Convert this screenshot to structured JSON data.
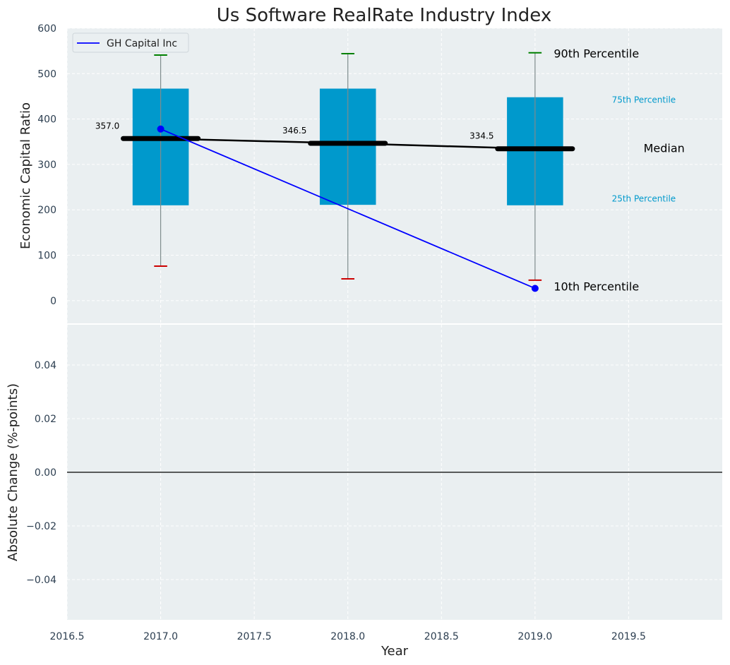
{
  "chart_data": [
    {
      "type": "box",
      "title": "Us Software RealRate Industry Index",
      "ylabel": "Economic Capital Ratio",
      "xlim": [
        2016.5,
        2020.0
      ],
      "ylim": [
        -50,
        600
      ],
      "xticks": [
        "2016.5",
        "2017.0",
        "2017.5",
        "2018.0",
        "2018.5",
        "2019.0",
        "2019.5"
      ],
      "xtick_values": [
        2016.5,
        2017.0,
        2017.5,
        2018.0,
        2018.5,
        2019.0,
        2019.5
      ],
      "yticks": [
        "0",
        "100",
        "200",
        "300",
        "400",
        "500",
        "600"
      ],
      "ytick_values": [
        0,
        100,
        200,
        300,
        400,
        500,
        600
      ],
      "grid": true,
      "legend": {
        "position": "top-left",
        "entries": [
          "GH Capital Inc"
        ]
      },
      "percentiles": [
        {
          "year": 2017,
          "p10": 76,
          "p25": 210,
          "median": 357.0,
          "median_label": "357.0",
          "p75": 467,
          "p90": 541
        },
        {
          "year": 2018,
          "p10": 48,
          "p25": 211,
          "median": 346.5,
          "median_label": "346.5",
          "p75": 467,
          "p90": 544
        },
        {
          "year": 2019,
          "p10": 45,
          "p25": 210,
          "median": 334.5,
          "median_label": "334.5",
          "p75": 448,
          "p90": 546
        }
      ],
      "series": [
        {
          "name": "GH Capital Inc",
          "color": "#0000ff",
          "x": [
            2017,
            2019
          ],
          "y": [
            378,
            27
          ]
        }
      ],
      "annotations": {
        "p90": "90th Percentile",
        "p75": "75th Percentile",
        "median": "Median",
        "p25": "25th Percentile",
        "p10": "10th Percentile"
      },
      "colors": {
        "box": "#0099cc",
        "median": "#000000",
        "p90_cap": "#008000",
        "p10_cap": "#cc0000",
        "background": "#eaeff1",
        "p75_p25_label": "#0099cc"
      }
    },
    {
      "type": "line",
      "xlabel": "Year",
      "ylabel": "Absolute Change (%-points)",
      "xlim": [
        2016.5,
        2020.0
      ],
      "ylim": [
        -0.055,
        0.055
      ],
      "xticks": [
        "2016.5",
        "2017.0",
        "2017.5",
        "2018.0",
        "2018.5",
        "2019.0",
        "2019.5"
      ],
      "xtick_values": [
        2016.5,
        2017.0,
        2017.5,
        2018.0,
        2018.5,
        2019.0,
        2019.5
      ],
      "yticks": [
        "−0.04",
        "−0.02",
        "0.00",
        "0.02",
        "0.04"
      ],
      "ytick_values": [
        -0.04,
        -0.02,
        0.0,
        0.02,
        0.04
      ],
      "grid": true,
      "reference_line": 0.0
    }
  ]
}
